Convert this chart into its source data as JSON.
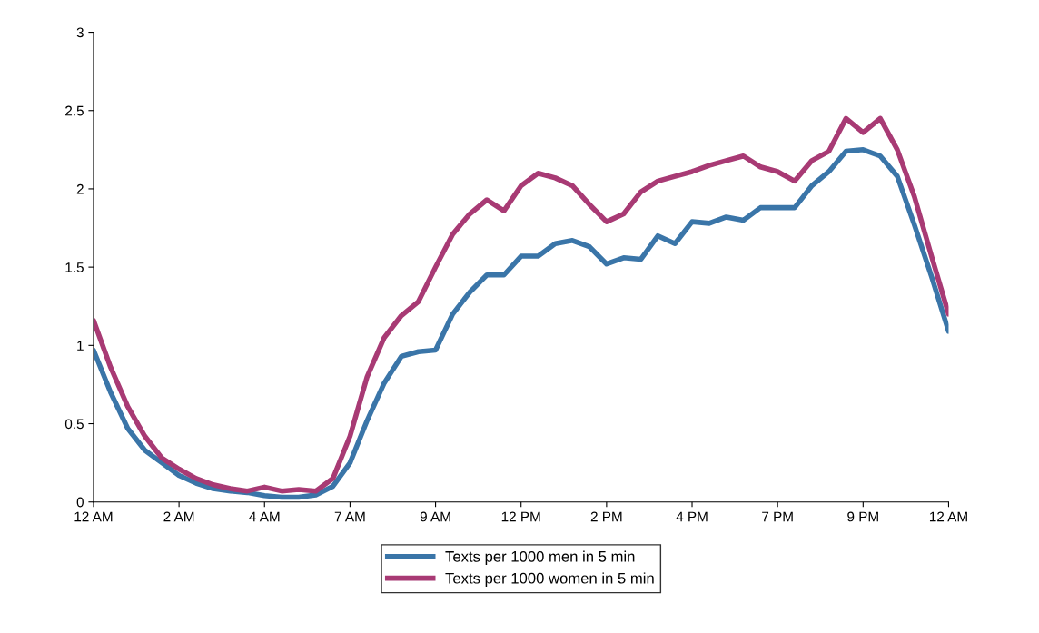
{
  "chart_data": {
    "type": "line",
    "categories": [
      "12 AM",
      null,
      null,
      null,
      null,
      "2 AM",
      null,
      null,
      null,
      null,
      "4 AM",
      null,
      null,
      null,
      null,
      "7 AM",
      null,
      null,
      null,
      null,
      "9 AM",
      null,
      null,
      null,
      null,
      "12 PM",
      null,
      null,
      null,
      null,
      "2 PM",
      null,
      null,
      null,
      null,
      "4 PM",
      null,
      null,
      null,
      null,
      "7 PM",
      null,
      null,
      null,
      null,
      "9 PM",
      null,
      null,
      null,
      null,
      "12 AM"
    ],
    "ylim": [
      0,
      3
    ],
    "yticks": [
      0,
      0.5,
      1,
      1.5,
      2,
      2.5,
      3
    ],
    "grid": false,
    "legend": "bottom",
    "marker": "none",
    "line_style": "solid",
    "series": [
      {
        "name": "Texts per 1000 men in 5 min",
        "color": "#3a75a8",
        "values": [
          0.97,
          0.7,
          0.47,
          0.33,
          0.25,
          0.17,
          0.12,
          0.085,
          0.07,
          0.06,
          0.04,
          0.03,
          0.03,
          0.045,
          0.1,
          0.25,
          0.52,
          0.76,
          0.93,
          0.96,
          0.97,
          1.2,
          1.34,
          1.45,
          1.45,
          1.57,
          1.57,
          1.65,
          1.67,
          1.63,
          1.52,
          1.56,
          1.55,
          1.7,
          1.65,
          1.79,
          1.78,
          1.82,
          1.8,
          1.88,
          1.88,
          1.88,
          2.02,
          2.11,
          2.24,
          2.25,
          2.21,
          2.08,
          1.77,
          1.44,
          1.09
        ]
      },
      {
        "name": "Texts per 1000 women in 5 min",
        "color": "#a83a74",
        "values": [
          1.16,
          0.86,
          0.61,
          0.42,
          0.28,
          0.21,
          0.15,
          0.11,
          0.085,
          0.07,
          0.095,
          0.07,
          0.08,
          0.07,
          0.15,
          0.42,
          0.8,
          1.05,
          1.19,
          1.28,
          1.5,
          1.71,
          1.84,
          1.93,
          1.86,
          2.02,
          2.1,
          2.07,
          2.02,
          1.9,
          1.79,
          1.84,
          1.98,
          2.05,
          2.08,
          2.11,
          2.15,
          2.18,
          2.21,
          2.14,
          2.11,
          2.05,
          2.18,
          2.24,
          2.45,
          2.36,
          2.45,
          2.25,
          1.95,
          1.57,
          1.2
        ]
      }
    ]
  }
}
